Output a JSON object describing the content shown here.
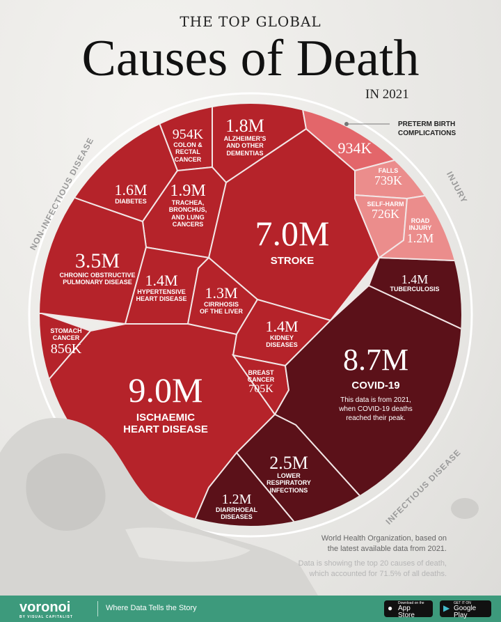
{
  "header": {
    "kicker": "THE TOP GLOBAL",
    "title": "Causes of Death",
    "year": "IN 2021"
  },
  "rings": {
    "non_infectious": "NON-INFECTIOUS DISEASE",
    "injury": "INJURY",
    "infectious": "INFECTIOUS DISEASE"
  },
  "colors": {
    "non_infectious": "#b5232a",
    "injury": "#e3666a",
    "injury_light": "#eb8d8c",
    "infectious": "#5b1119",
    "footer": "#3d9a7c"
  },
  "chart_data": {
    "type": "voronoi-treemap",
    "title": "Causes of Death",
    "items": [
      {
        "name": "ALZHEIMER'S\nAND OTHER\nDEMENTIAS",
        "value_label": "1.8M",
        "value": 1.8,
        "group": "non_infectious"
      },
      {
        "name": "COLON &\nRECTAL\nCANCER",
        "value_label": "954K",
        "value": 0.954,
        "group": "non_infectious"
      },
      {
        "name": "DIABETES",
        "value_label": "1.6M",
        "value": 1.6,
        "group": "non_infectious"
      },
      {
        "name": "TRACHEA,\nBRONCHUS,\nAND LUNG\nCANCERS",
        "value_label": "1.9M",
        "value": 1.9,
        "group": "non_infectious"
      },
      {
        "name": "STROKE",
        "value_label": "7.0M",
        "value": 7.0,
        "group": "non_infectious"
      },
      {
        "name": "CHRONIC OBSTRUCTIVE\nPULMONARY DISEASE",
        "value_label": "3.5M",
        "value": 3.5,
        "group": "non_infectious"
      },
      {
        "name": "HYPERTENSIVE\nHEART DISEASE",
        "value_label": "1.4M",
        "value": 1.4,
        "group": "non_infectious"
      },
      {
        "name": "CIRRHOSIS\nOF THE LIVER",
        "value_label": "1.3M",
        "value": 1.3,
        "group": "non_infectious"
      },
      {
        "name": "KIDNEY\nDISEASES",
        "value_label": "1.4M",
        "value": 1.4,
        "group": "non_infectious"
      },
      {
        "name": "STOMACH\nCANCER",
        "value_label": "856K",
        "value": 0.856,
        "group": "non_infectious"
      },
      {
        "name": "ISCHAEMIC\nHEART DISEASE",
        "value_label": "9.0M",
        "value": 9.0,
        "group": "non_infectious"
      },
      {
        "name": "BREAST\nCANCER",
        "value_label": "705K",
        "value": 0.705,
        "group": "non_infectious"
      },
      {
        "name": "COVID-19",
        "value_label": "8.7M",
        "value": 8.7,
        "group": "infectious",
        "note": "This data is from 2021,\nwhen COVID-19 deaths\nreached their peak."
      },
      {
        "name": "TUBERCULOSIS",
        "value_label": "1.4M",
        "value": 1.4,
        "group": "infectious"
      },
      {
        "name": "LOWER\nRESPIRATORY\nINFECTIONS",
        "value_label": "2.5M",
        "value": 2.5,
        "group": "infectious"
      },
      {
        "name": "DIARRHOEAL\nDISEASES",
        "value_label": "1.2M",
        "value": 1.2,
        "group": "infectious"
      },
      {
        "name": "PRETERM BIRTH\nCOMPLICATIONS",
        "value_label": "934K",
        "value": 0.934,
        "group": "injury"
      },
      {
        "name": "FALLS",
        "value_label": "739K",
        "value": 0.739,
        "group": "injury_light"
      },
      {
        "name": "SELF-HARM",
        "value_label": "726K",
        "value": 0.726,
        "group": "injury_light"
      },
      {
        "name": "ROAD\nINJURY",
        "value_label": "1.2M",
        "value": 1.2,
        "group": "injury_light"
      }
    ]
  },
  "source": {
    "line1": "World Health Organization, based on\nthe latest available data from 2021.",
    "line2": "Data is showing the top 20 causes of death,\nwhich accounted for 71.5% of all deaths."
  },
  "footer": {
    "brand": "voronoi",
    "brand_sub": "BY VISUAL CAPITALIST",
    "tagline": "Where Data Tells the Story",
    "appstore_small": "Download on the",
    "appstore": "App Store",
    "gplay_small": "GET IT ON",
    "gplay": "Google Play"
  }
}
